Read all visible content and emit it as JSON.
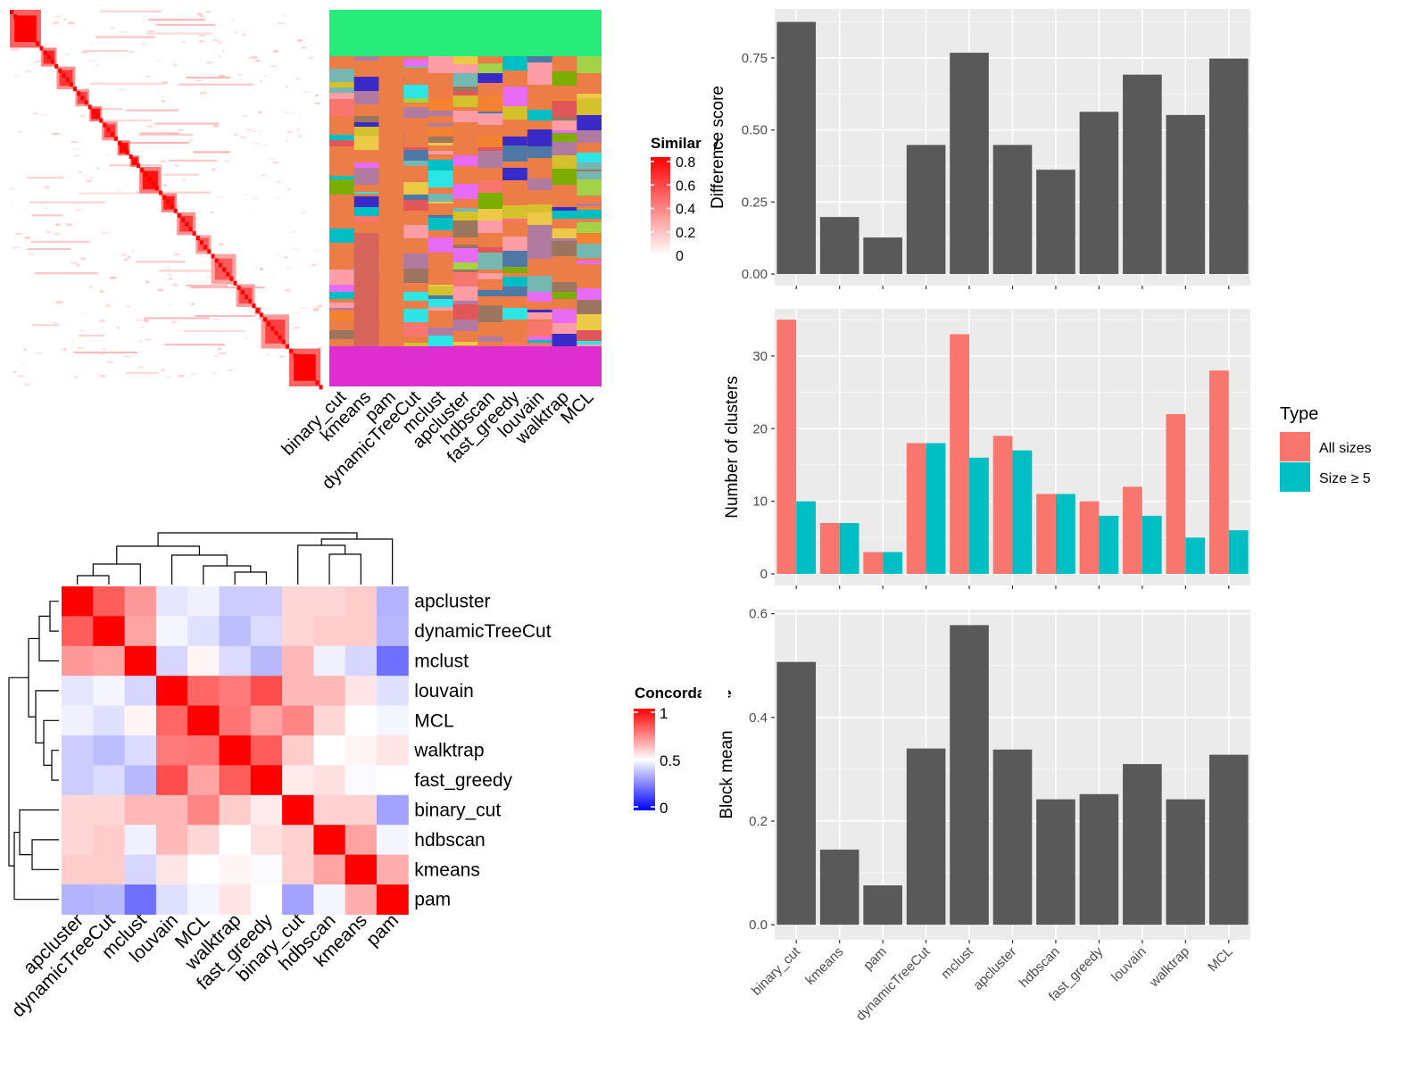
{
  "colors": {
    "panel_bg": "#EBEBEB",
    "bar_dark": "#595959",
    "all_sizes": "#F8766D",
    "size_ge5": "#00BFC4",
    "heat_high": "#FF0000",
    "heat_mid": "#FFFFFF",
    "heat_low": "#0000FF"
  },
  "chart_data": [
    {
      "id": "similarity-heatmap",
      "type": "heatmap",
      "legend_title": "Similarity",
      "legend_ticks": [
        "0.8",
        "0.6",
        "0.4",
        "0.2",
        "0"
      ],
      "block_sizes_fraction": [
        0.1,
        0.05,
        0.06,
        0.045,
        0.04,
        0.05,
        0.04,
        0.03,
        0.07,
        0.05,
        0.06,
        0.05,
        0.08,
        0.06,
        0.02,
        0.09,
        0.1
      ]
    },
    {
      "id": "cluster-assignment",
      "type": "heatmap",
      "columns": [
        "binary_cut",
        "kmeans",
        "pam",
        "dynamicTreeCut",
        "mclust",
        "apcluster",
        "hdbscan",
        "fast_greedy",
        "louvain",
        "walktrap",
        "MCL"
      ]
    },
    {
      "id": "concordance-heatmap",
      "type": "heatmap",
      "legend_title": "Concordance",
      "legend_ticks": [
        "1",
        "0.5",
        "0"
      ],
      "row_labels": [
        "apcluster",
        "dynamicTreeCut",
        "mclust",
        "louvain",
        "MCL",
        "walktrap",
        "fast_greedy",
        "binary_cut",
        "hdbscan",
        "kmeans",
        "pam"
      ],
      "col_labels": [
        "apcluster",
        "dynamicTreeCut",
        "mclust",
        "louvain",
        "MCL",
        "walktrap",
        "fast_greedy",
        "binary_cut",
        "hdbscan",
        "kmeans",
        "pam"
      ],
      "values": [
        [
          1.0,
          0.82,
          0.7,
          0.45,
          0.47,
          0.4,
          0.4,
          0.58,
          0.58,
          0.6,
          0.35
        ],
        [
          0.82,
          1.0,
          0.68,
          0.48,
          0.44,
          0.37,
          0.43,
          0.58,
          0.6,
          0.6,
          0.36
        ],
        [
          0.7,
          0.68,
          1.0,
          0.42,
          0.52,
          0.43,
          0.36,
          0.64,
          0.47,
          0.42,
          0.22
        ],
        [
          0.45,
          0.48,
          0.42,
          1.0,
          0.8,
          0.76,
          0.85,
          0.64,
          0.64,
          0.55,
          0.44
        ],
        [
          0.47,
          0.44,
          0.52,
          0.8,
          1.0,
          0.77,
          0.68,
          0.74,
          0.58,
          0.5,
          0.48
        ],
        [
          0.4,
          0.37,
          0.43,
          0.76,
          0.77,
          1.0,
          0.82,
          0.6,
          0.5,
          0.52,
          0.55
        ],
        [
          0.4,
          0.43,
          0.36,
          0.85,
          0.68,
          0.82,
          1.0,
          0.54,
          0.56,
          0.49,
          0.5
        ],
        [
          0.58,
          0.58,
          0.64,
          0.64,
          0.74,
          0.6,
          0.54,
          1.0,
          0.59,
          0.59,
          0.32
        ],
        [
          0.58,
          0.6,
          0.47,
          0.64,
          0.58,
          0.5,
          0.56,
          0.59,
          1.0,
          0.68,
          0.48
        ],
        [
          0.6,
          0.6,
          0.42,
          0.55,
          0.5,
          0.52,
          0.49,
          0.59,
          0.68,
          1.0,
          0.66
        ],
        [
          0.35,
          0.36,
          0.22,
          0.44,
          0.48,
          0.55,
          0.5,
          0.32,
          0.48,
          0.66,
          1.0
        ]
      ]
    },
    {
      "id": "difference-score",
      "type": "bar",
      "categories": [
        "binary_cut",
        "kmeans",
        "pam",
        "dynamicTreeCut",
        "mclust",
        "apcluster",
        "hdbscan",
        "fast_greedy",
        "louvain",
        "walktrap",
        "MCL"
      ],
      "values": [
        0.875,
        0.198,
        0.127,
        0.448,
        0.768,
        0.448,
        0.362,
        0.563,
        0.692,
        0.552,
        0.748
      ],
      "ylabel": "Difference score",
      "ylim": [
        -0.04,
        0.92
      ],
      "yticks": [
        0.0,
        0.25,
        0.5,
        0.75
      ],
      "ytick_labels": [
        "0.00",
        "0.25",
        "0.50",
        "0.75"
      ]
    },
    {
      "id": "number-of-clusters",
      "type": "bar",
      "categories": [
        "binary_cut",
        "kmeans",
        "pam",
        "dynamicTreeCut",
        "mclust",
        "apcluster",
        "hdbscan",
        "fast_greedy",
        "louvain",
        "walktrap",
        "MCL"
      ],
      "series": [
        {
          "name": "All sizes",
          "values": [
            35,
            7,
            3,
            18,
            33,
            19,
            11,
            10,
            12,
            22,
            28
          ]
        },
        {
          "name": "Size ≥ 5",
          "values": [
            10,
            7,
            3,
            18,
            16,
            17,
            11,
            8,
            8,
            5,
            6
          ]
        }
      ],
      "ylabel": "Number of clusters",
      "ylim": [
        -1.6,
        36.5
      ],
      "yticks": [
        0,
        10,
        20,
        30
      ],
      "ytick_labels": [
        "0",
        "10",
        "20",
        "30"
      ],
      "legend_title": "Type",
      "legend_position": "right"
    },
    {
      "id": "block-mean",
      "type": "bar",
      "categories": [
        "binary_cut",
        "kmeans",
        "pam",
        "dynamicTreeCut",
        "mclust",
        "apcluster",
        "hdbscan",
        "fast_greedy",
        "louvain",
        "walktrap",
        "MCL"
      ],
      "values": [
        0.507,
        0.145,
        0.076,
        0.34,
        0.578,
        0.338,
        0.242,
        0.252,
        0.31,
        0.242,
        0.328
      ],
      "ylabel": "Block mean",
      "ylim": [
        -0.029,
        0.608
      ],
      "yticks": [
        0.0,
        0.2,
        0.4,
        0.6
      ],
      "ytick_labels": [
        "0.0",
        "0.2",
        "0.4",
        "0.6"
      ]
    }
  ]
}
